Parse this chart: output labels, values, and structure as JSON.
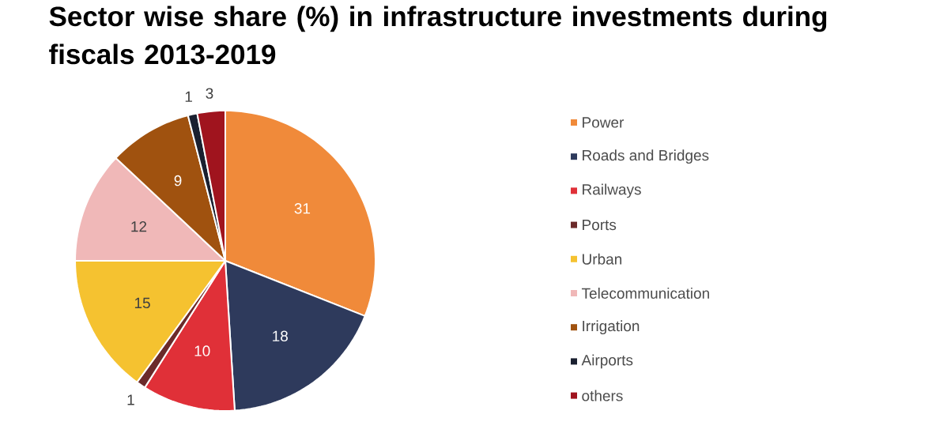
{
  "chart_data": {
    "type": "pie",
    "title": "Sector wise share (%) in infrastructure investments during fiscals 2013-2019",
    "categories": [
      "Power",
      "Roads and Bridges",
      "Railways",
      "Ports",
      "Urban",
      "Telecommunication",
      "Irrigation",
      "Airports",
      "others"
    ],
    "values": [
      31,
      18,
      10,
      1,
      15,
      12,
      9,
      1,
      3
    ],
    "colors": [
      "#f08a3a",
      "#2e3a5c",
      "#e03038",
      "#6b2a2a",
      "#f5c230",
      "#f0b8b8",
      "#a0520f",
      "#1a2030",
      "#a0141e"
    ],
    "data_labels": true,
    "legend": "right"
  }
}
